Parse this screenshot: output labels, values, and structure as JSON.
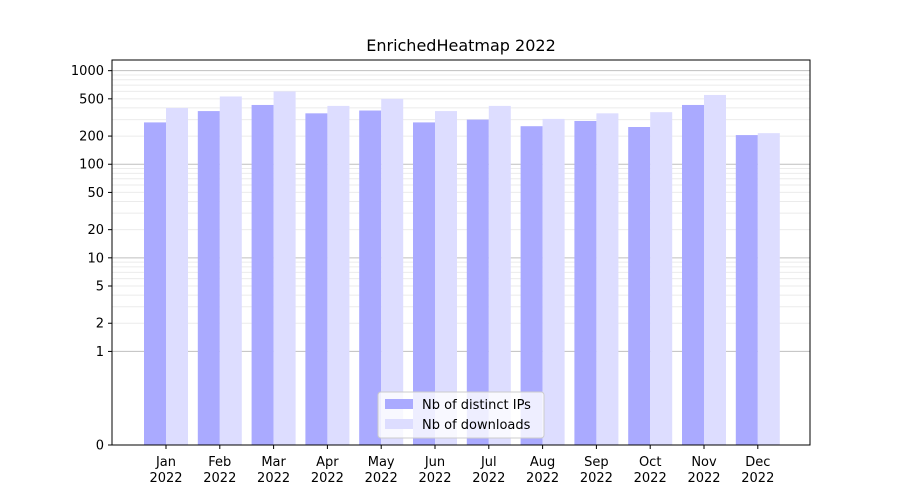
{
  "chart_data": {
    "type": "bar",
    "title": "EnrichedHeatmap 2022",
    "xlabel": "",
    "ylabel": "",
    "yscale": "symlog",
    "ylim": [
      0,
      1300
    ],
    "grid": "y",
    "legend_position": "bottom-center",
    "categories": [
      [
        "Jan",
        "2022"
      ],
      [
        "Feb",
        "2022"
      ],
      [
        "Mar",
        "2022"
      ],
      [
        "Apr",
        "2022"
      ],
      [
        "May",
        "2022"
      ],
      [
        "Jun",
        "2022"
      ],
      [
        "Jul",
        "2022"
      ],
      [
        "Aug",
        "2022"
      ],
      [
        "Sep",
        "2022"
      ],
      [
        "Oct",
        "2022"
      ],
      [
        "Nov",
        "2022"
      ],
      [
        "Dec",
        "2022"
      ]
    ],
    "yticks": [
      0,
      1,
      2,
      5,
      10,
      20,
      50,
      100,
      200,
      500,
      1000
    ],
    "series": [
      {
        "name": "Nb of distinct IPs",
        "color": "#aaaaff",
        "values": [
          280,
          370,
          430,
          350,
          375,
          280,
          300,
          255,
          290,
          250,
          430,
          205
        ]
      },
      {
        "name": "Nb of downloads",
        "color": "#ddddff",
        "values": [
          400,
          530,
          600,
          420,
          500,
          370,
          420,
          305,
          350,
          360,
          550,
          215
        ]
      }
    ]
  }
}
